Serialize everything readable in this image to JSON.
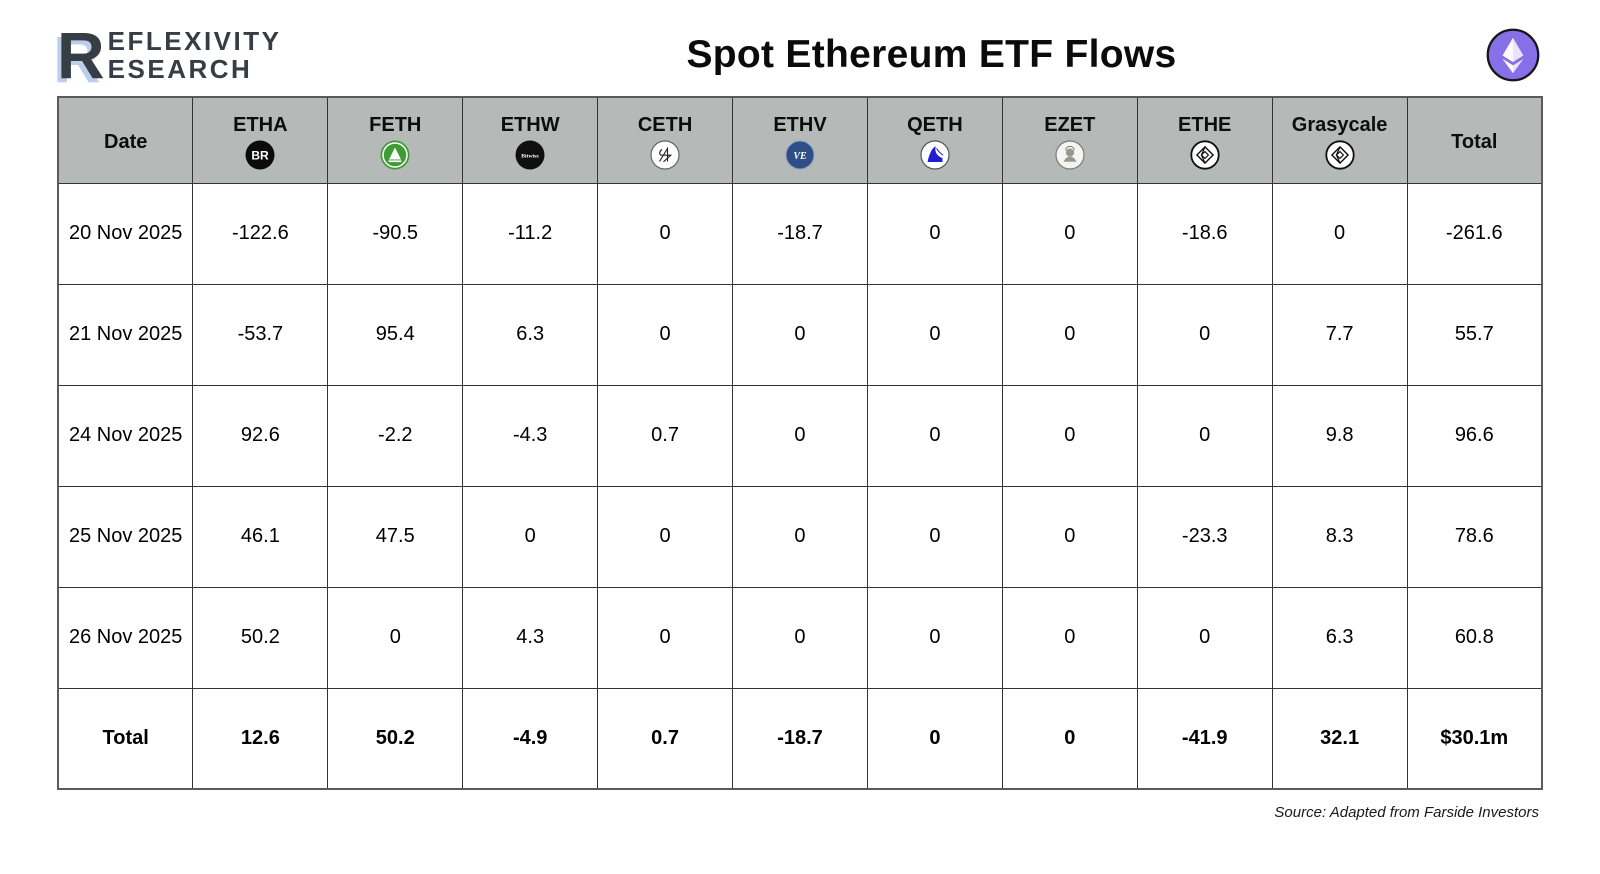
{
  "logo": {
    "big_letter": "R",
    "line1": "EFLEXIVITY",
    "line2": "ESEARCH"
  },
  "title": "Spot Ethereum ETF Flows",
  "header_icon": "ethereum-icon",
  "source": "Source: Adapted from Farside Investors",
  "colors": {
    "header_bg": "#b5b9b7",
    "eth_purple": "#8570e8",
    "logo_dark": "#363d44",
    "logo_shadow": "#b9cfec",
    "grid_line": "#333333",
    "fidelity_green": "#3f9b33",
    "vaneck_blue": "#2d4e86",
    "invesco_blue": "#1f1fd0",
    "blackrock_black": "#0b0b0b"
  },
  "chart_data": {
    "type": "table",
    "title": "Spot Ethereum ETF Flows",
    "columns": [
      {
        "label": "Date",
        "icon": null
      },
      {
        "label": "ETHA",
        "icon": "blackrock-icon"
      },
      {
        "label": "FETH",
        "icon": "fidelity-icon"
      },
      {
        "label": "ETHW",
        "icon": "bitwise-icon"
      },
      {
        "label": "CETH",
        "icon": "twentyoneshares-icon"
      },
      {
        "label": "ETHV",
        "icon": "vaneck-icon"
      },
      {
        "label": "QETH",
        "icon": "invesco-icon"
      },
      {
        "label": "EZET",
        "icon": "franklin-icon"
      },
      {
        "label": "ETHE",
        "icon": "grayscale-icon"
      },
      {
        "label": "Grasycale",
        "icon": "grayscale-icon"
      },
      {
        "label": "Total",
        "icon": null
      }
    ],
    "rows": [
      {
        "date": "20 Nov 2025",
        "values": [
          "-122.6",
          "-90.5",
          "-11.2",
          "0",
          "-18.7",
          "0",
          "0",
          "-18.6",
          "0",
          "-261.6"
        ]
      },
      {
        "date": "21 Nov 2025",
        "values": [
          "-53.7",
          "95.4",
          "6.3",
          "0",
          "0",
          "0",
          "0",
          "0",
          "7.7",
          "55.7"
        ]
      },
      {
        "date": "24 Nov 2025",
        "values": [
          "92.6",
          "-2.2",
          "-4.3",
          "0.7",
          "0",
          "0",
          "0",
          "0",
          "9.8",
          "96.6"
        ]
      },
      {
        "date": "25 Nov 2025",
        "values": [
          "46.1",
          "47.5",
          "0",
          "0",
          "0",
          "0",
          "0",
          "-23.3",
          "8.3",
          "78.6"
        ]
      },
      {
        "date": "26 Nov 2025",
        "values": [
          "50.2",
          "0",
          "4.3",
          "0",
          "0",
          "0",
          "0",
          "0",
          "6.3",
          "60.8"
        ]
      }
    ],
    "total_row": {
      "label": "Total",
      "values": [
        "12.6",
        "50.2",
        "-4.9",
        "0.7",
        "-18.7",
        "0",
        "0",
        "-41.9",
        "32.1",
        "$30.1m"
      ]
    }
  }
}
